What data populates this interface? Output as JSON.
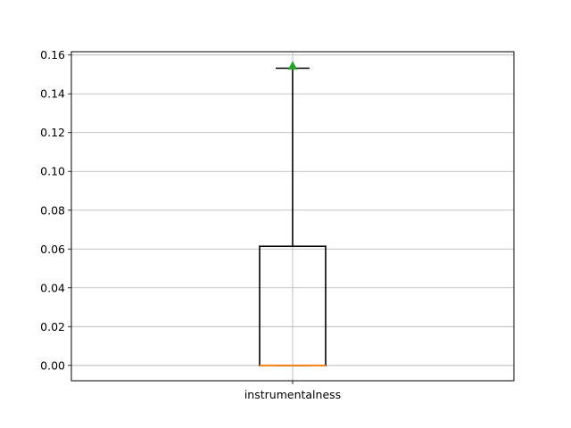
{
  "chart_data": {
    "type": "box",
    "categories": [
      "instrumentalness"
    ],
    "boxes": [
      {
        "label": "instrumentalness",
        "whisker_low": 0.0,
        "q1": 0.0,
        "median": 0.0,
        "q3": 0.0614,
        "whisker_high": 0.1532,
        "mean": 0.1544
      }
    ],
    "ylim": [
      -0.0079,
      0.1617
    ],
    "yticks": [
      0.0,
      0.02,
      0.04,
      0.06,
      0.08,
      0.1,
      0.12,
      0.14,
      0.16
    ],
    "ytick_labels": [
      "0.00",
      "0.02",
      "0.04",
      "0.06",
      "0.08",
      "0.10",
      "0.12",
      "0.14",
      "0.16"
    ],
    "grid": true,
    "colors": {
      "box": "#000000",
      "median": "#ff7f0e",
      "mean_marker": "#2ca02c",
      "grid": "#b0b0b0"
    }
  }
}
